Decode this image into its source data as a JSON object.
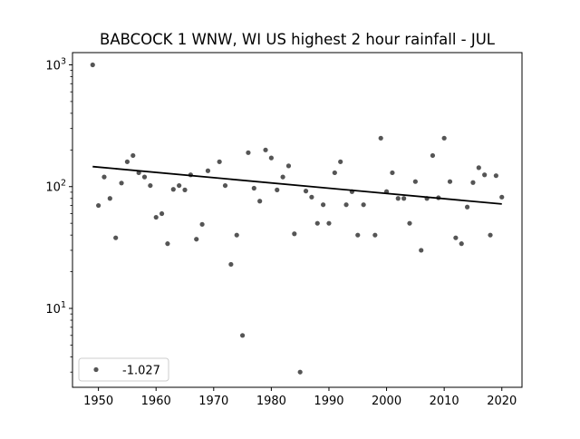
{
  "chart_data": {
    "type": "scatter",
    "title": "BABCOCK 1 WNW, WI US highest 2 hour rainfall - JUL",
    "xlabel": "",
    "ylabel": "",
    "yscale": "log",
    "xlim": [
      1945.5,
      2023.5
    ],
    "ylim": [
      2.25,
      1260
    ],
    "x_ticks": [
      1950,
      1960,
      1970,
      1980,
      1990,
      2000,
      2010,
      2020
    ],
    "y_ticks": [
      {
        "value": 10,
        "base": "10",
        "exp": "1"
      },
      {
        "value": 100,
        "base": "10",
        "exp": "2"
      },
      {
        "value": 1000,
        "base": "10",
        "exp": "3"
      }
    ],
    "grid": false,
    "legend": {
      "placement": "lower-left",
      "label": "-1.027"
    },
    "series": [
      {
        "label": "-1.027",
        "color": "#555555",
        "points": [
          {
            "x": 1949,
            "y": 1000
          },
          {
            "x": 1950,
            "y": 70
          },
          {
            "x": 1951,
            "y": 120
          },
          {
            "x": 1952,
            "y": 80
          },
          {
            "x": 1953,
            "y": 38
          },
          {
            "x": 1954,
            "y": 107
          },
          {
            "x": 1955,
            "y": 160
          },
          {
            "x": 1956,
            "y": 180
          },
          {
            "x": 1957,
            "y": 130
          },
          {
            "x": 1958,
            "y": 120
          },
          {
            "x": 1959,
            "y": 102
          },
          {
            "x": 1960,
            "y": 56
          },
          {
            "x": 1961,
            "y": 60
          },
          {
            "x": 1962,
            "y": 34
          },
          {
            "x": 1963,
            "y": 95
          },
          {
            "x": 1964,
            "y": 102
          },
          {
            "x": 1965,
            "y": 94
          },
          {
            "x": 1966,
            "y": 125
          },
          {
            "x": 1967,
            "y": 37
          },
          {
            "x": 1968,
            "y": 49
          },
          {
            "x": 1969,
            "y": 135
          },
          {
            "x": 1971,
            "y": 160
          },
          {
            "x": 1972,
            "y": 102
          },
          {
            "x": 1973,
            "y": 23
          },
          {
            "x": 1974,
            "y": 40
          },
          {
            "x": 1975,
            "y": 6
          },
          {
            "x": 1976,
            "y": 190
          },
          {
            "x": 1977,
            "y": 97
          },
          {
            "x": 1978,
            "y": 76
          },
          {
            "x": 1979,
            "y": 200
          },
          {
            "x": 1980,
            "y": 172
          },
          {
            "x": 1981,
            "y": 94
          },
          {
            "x": 1982,
            "y": 120
          },
          {
            "x": 1983,
            "y": 148
          },
          {
            "x": 1984,
            "y": 41
          },
          {
            "x": 1985,
            "y": 3
          },
          {
            "x": 1986,
            "y": 92
          },
          {
            "x": 1987,
            "y": 82
          },
          {
            "x": 1988,
            "y": 50
          },
          {
            "x": 1989,
            "y": 71
          },
          {
            "x": 1990,
            "y": 50
          },
          {
            "x": 1991,
            "y": 130
          },
          {
            "x": 1992,
            "y": 160
          },
          {
            "x": 1993,
            "y": 71
          },
          {
            "x": 1994,
            "y": 91
          },
          {
            "x": 1995,
            "y": 40
          },
          {
            "x": 1996,
            "y": 71
          },
          {
            "x": 1998,
            "y": 40
          },
          {
            "x": 1999,
            "y": 250
          },
          {
            "x": 2000,
            "y": 91
          },
          {
            "x": 2001,
            "y": 130
          },
          {
            "x": 2002,
            "y": 80
          },
          {
            "x": 2003,
            "y": 80
          },
          {
            "x": 2004,
            "y": 50
          },
          {
            "x": 2005,
            "y": 110
          },
          {
            "x": 2006,
            "y": 30
          },
          {
            "x": 2007,
            "y": 80
          },
          {
            "x": 2008,
            "y": 180
          },
          {
            "x": 2009,
            "y": 81
          },
          {
            "x": 2010,
            "y": 250
          },
          {
            "x": 2011,
            "y": 110
          },
          {
            "x": 2012,
            "y": 38
          },
          {
            "x": 2013,
            "y": 34
          },
          {
            "x": 2014,
            "y": 68
          },
          {
            "x": 2015,
            "y": 108
          },
          {
            "x": 2016,
            "y": 143
          },
          {
            "x": 2017,
            "y": 125
          },
          {
            "x": 2018,
            "y": 40
          },
          {
            "x": 2019,
            "y": 123
          },
          {
            "x": 2020,
            "y": 82
          }
        ]
      }
    ],
    "trend_line": {
      "color": "#000000",
      "x": [
        1949,
        2020
      ],
      "y": [
        146,
        72
      ]
    }
  }
}
